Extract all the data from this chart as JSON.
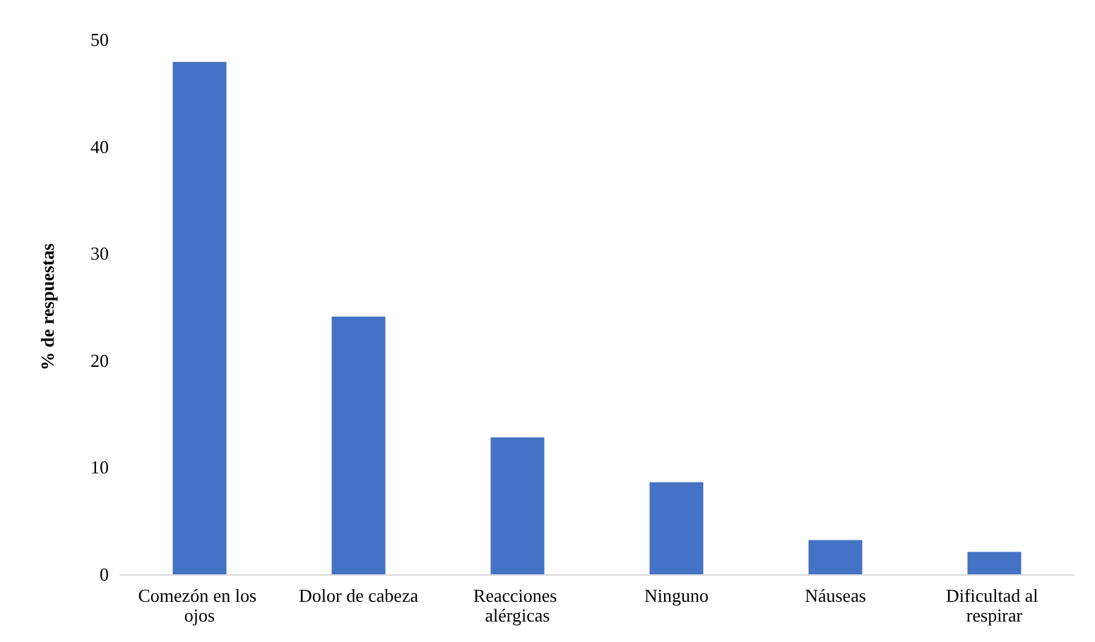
{
  "chart_data": {
    "type": "bar",
    "ylabel": "% de respuestas",
    "categories": [
      "Comezón en los ojos",
      "Dolor de cabeza",
      "Reacciones alérgicas",
      "Ninguno",
      "Náuseas",
      "Dificultad al respirar"
    ],
    "values": [
      47.9,
      24.1,
      12.8,
      8.6,
      3.2,
      2.1
    ],
    "color": "#4472c4",
    "ylim": [
      0,
      50
    ],
    "yticks": [
      0,
      10,
      20,
      30,
      40,
      50
    ],
    "grid": false
  }
}
